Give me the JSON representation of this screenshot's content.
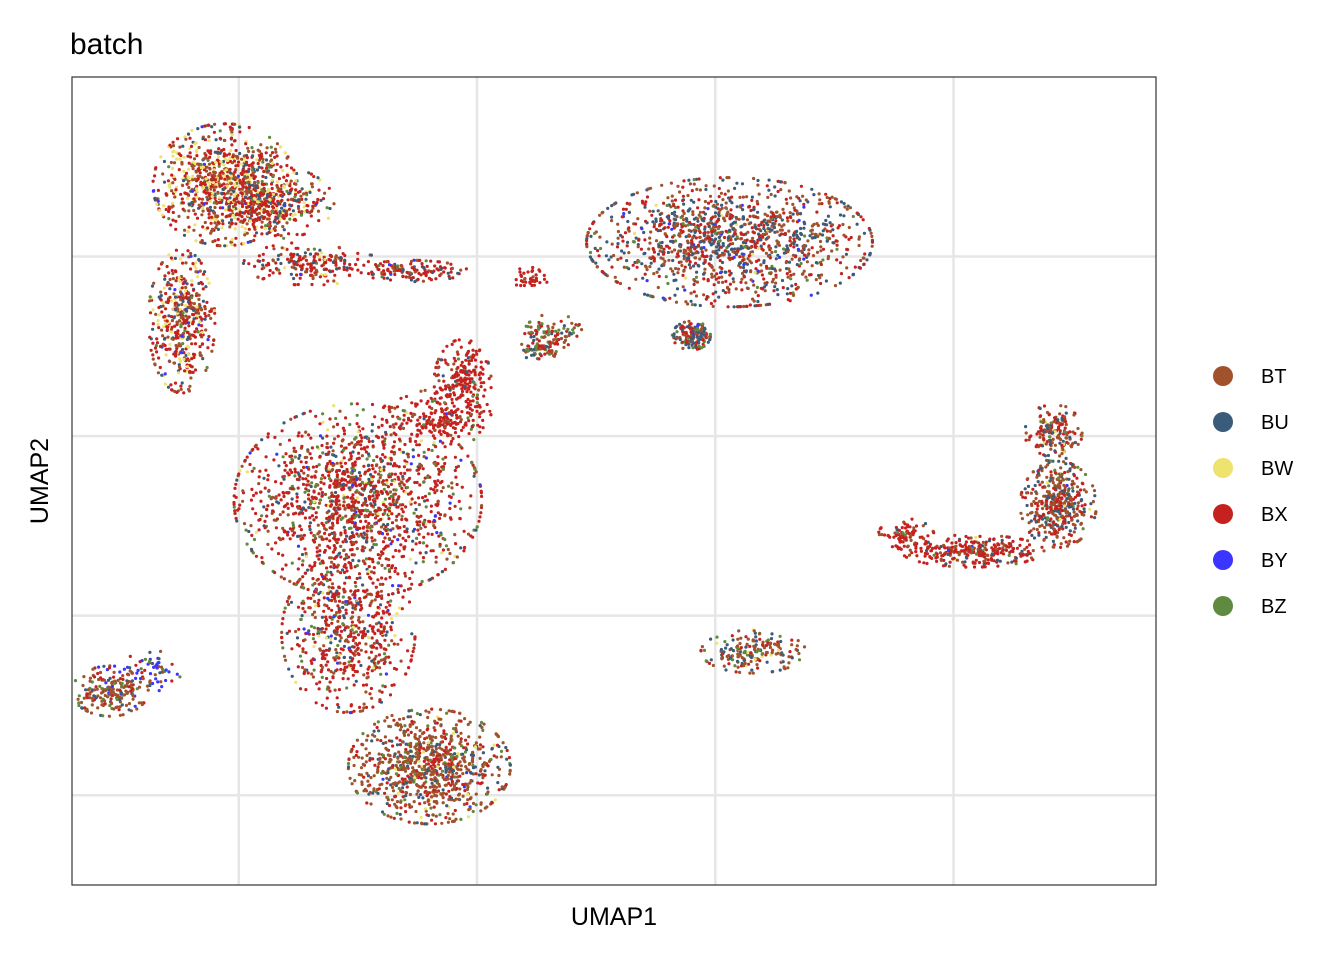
{
  "chart_data": {
    "type": "scatter",
    "title": "batch",
    "xlabel": "UMAP1",
    "ylabel": "UMAP2",
    "xlim": [
      -8.5,
      14.25
    ],
    "ylim": [
      -12.5,
      10
    ],
    "grid": true,
    "x_gridlines": [
      -5,
      0,
      5,
      10
    ],
    "y_gridlines": [
      -10,
      -5,
      0,
      5
    ],
    "tick_labels_shown": false,
    "legend_position": "right",
    "series": [
      {
        "name": "BT",
        "color": "#A0522D"
      },
      {
        "name": "BU",
        "color": "#3B5B7A"
      },
      {
        "name": "BW",
        "color": "#EEE36E"
      },
      {
        "name": "BX",
        "color": "#C5221F"
      },
      {
        "name": "BY",
        "color": "#3A35FF"
      },
      {
        "name": "BZ",
        "color": "#5F8A3F"
      }
    ],
    "clusters": [
      {
        "cx": -5.3,
        "cy": 7.0,
        "rx": 1.5,
        "ry": 1.7,
        "n": 900,
        "w": [
          0.25,
          0.1,
          0.22,
          0.38,
          0.01,
          0.04
        ]
      },
      {
        "cx": -4.2,
        "cy": 6.5,
        "rx": 1.2,
        "ry": 1.0,
        "n": 300,
        "w": [
          0.2,
          0.12,
          0.15,
          0.45,
          0.02,
          0.06
        ]
      },
      {
        "cx": -6.2,
        "cy": 3.2,
        "rx": 0.7,
        "ry": 2.0,
        "n": 450,
        "w": [
          0.25,
          0.15,
          0.15,
          0.38,
          0.02,
          0.05
        ]
      },
      {
        "cx": -3.5,
        "cy": 4.8,
        "rx": 1.4,
        "ry": 0.6,
        "n": 200,
        "w": [
          0.15,
          0.15,
          0.05,
          0.6,
          0.02,
          0.03
        ]
      },
      {
        "cx": -1.5,
        "cy": 4.6,
        "rx": 1.3,
        "ry": 0.3,
        "n": 140,
        "w": [
          0.2,
          0.15,
          0.0,
          0.6,
          0.02,
          0.03
        ]
      },
      {
        "cx": 5.3,
        "cy": 5.4,
        "rx": 3.0,
        "ry": 1.8,
        "n": 1300,
        "w": [
          0.35,
          0.3,
          0.01,
          0.26,
          0.02,
          0.06
        ]
      },
      {
        "cx": -2.5,
        "cy": -1.8,
        "rx": 2.6,
        "ry": 2.7,
        "n": 1500,
        "w": [
          0.18,
          0.1,
          0.03,
          0.55,
          0.03,
          0.11
        ]
      },
      {
        "cx": -2.7,
        "cy": -5.5,
        "rx": 1.4,
        "ry": 2.2,
        "n": 600,
        "w": [
          0.2,
          0.1,
          0.03,
          0.55,
          0.04,
          0.08
        ]
      },
      {
        "cx": -1.0,
        "cy": -9.2,
        "rx": 1.7,
        "ry": 1.6,
        "n": 900,
        "w": [
          0.5,
          0.12,
          0.03,
          0.25,
          0.01,
          0.09
        ]
      },
      {
        "cx": -0.3,
        "cy": 1.5,
        "rx": 0.6,
        "ry": 1.2,
        "n": 220,
        "w": [
          0.1,
          0.05,
          0.0,
          0.8,
          0.0,
          0.05
        ]
      },
      {
        "cx": -0.8,
        "cy": 0.5,
        "rx": 1.1,
        "ry": 0.8,
        "n": 180,
        "w": [
          0.1,
          0.05,
          0.0,
          0.8,
          0.01,
          0.04
        ]
      },
      {
        "cx": -7.7,
        "cy": -7.1,
        "rx": 0.8,
        "ry": 0.7,
        "n": 200,
        "w": [
          0.5,
          0.1,
          0.0,
          0.15,
          0.07,
          0.18
        ]
      },
      {
        "cx": -6.8,
        "cy": -6.5,
        "rx": 0.6,
        "ry": 0.6,
        "n": 60,
        "w": [
          0.2,
          0.1,
          0.0,
          0.2,
          0.4,
          0.1
        ]
      },
      {
        "cx": 1.6,
        "cy": 2.9,
        "rx": 0.6,
        "ry": 0.5,
        "n": 90,
        "w": [
          0.3,
          0.1,
          0.0,
          0.35,
          0.0,
          0.25
        ]
      },
      {
        "cx": 1.3,
        "cy": 2.4,
        "rx": 0.5,
        "ry": 0.25,
        "n": 60,
        "w": [
          0.2,
          0.1,
          0.0,
          0.4,
          0.0,
          0.3
        ]
      },
      {
        "cx": 1.1,
        "cy": 4.4,
        "rx": 0.4,
        "ry": 0.3,
        "n": 40,
        "w": [
          0.1,
          0.0,
          0.0,
          0.9,
          0.0,
          0.0
        ]
      },
      {
        "cx": 4.5,
        "cy": 2.8,
        "rx": 0.4,
        "ry": 0.4,
        "n": 160,
        "w": [
          0.25,
          0.35,
          0.0,
          0.3,
          0.01,
          0.09
        ]
      },
      {
        "cx": 5.8,
        "cy": -6.0,
        "rx": 1.1,
        "ry": 0.6,
        "n": 190,
        "w": [
          0.45,
          0.2,
          0.07,
          0.15,
          0.0,
          0.13
        ]
      },
      {
        "cx": 12.2,
        "cy": -1.9,
        "rx": 0.8,
        "ry": 1.2,
        "n": 420,
        "w": [
          0.45,
          0.25,
          0.02,
          0.23,
          0.01,
          0.04
        ]
      },
      {
        "cx": 12.1,
        "cy": 0.1,
        "rx": 0.6,
        "ry": 0.8,
        "n": 170,
        "w": [
          0.4,
          0.2,
          0.03,
          0.33,
          0.0,
          0.04
        ]
      },
      {
        "cx": 10.4,
        "cy": -3.2,
        "rx": 1.5,
        "ry": 0.45,
        "n": 280,
        "w": [
          0.2,
          0.1,
          0.01,
          0.65,
          0.01,
          0.03
        ]
      },
      {
        "cx": 9.0,
        "cy": -2.8,
        "rx": 0.6,
        "ry": 0.5,
        "n": 90,
        "w": [
          0.15,
          0.05,
          0.0,
          0.75,
          0.0,
          0.05
        ]
      }
    ]
  }
}
